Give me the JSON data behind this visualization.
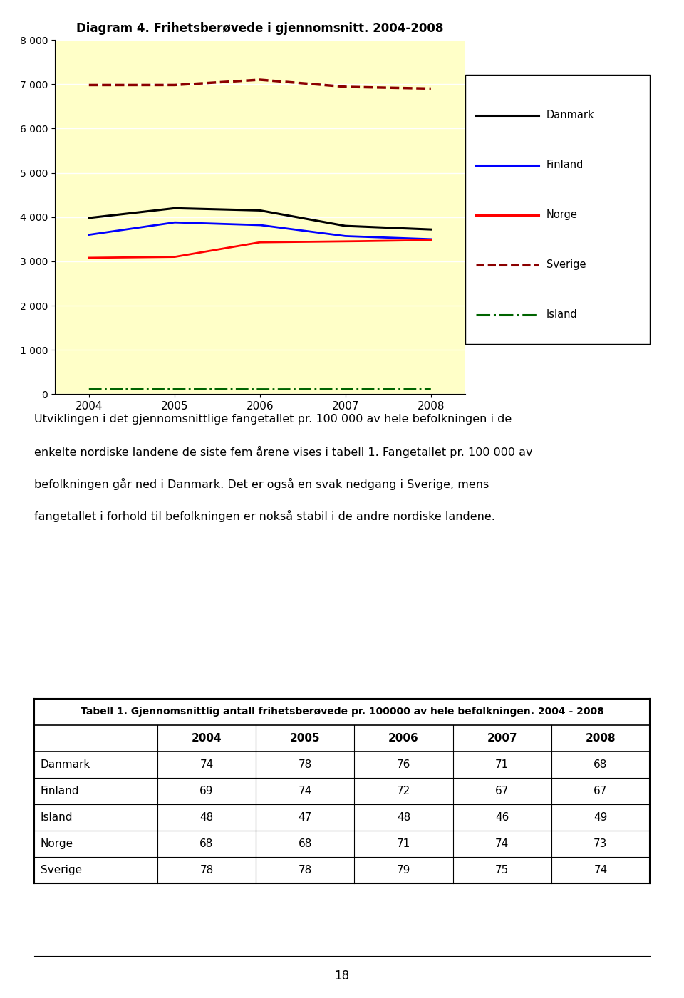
{
  "title": "Diagram 4. Frihetsberøvede i gjennomsnitt. 2004-2008",
  "years": [
    2004,
    2005,
    2006,
    2007,
    2008
  ],
  "series": {
    "Danmark": {
      "values": [
        3980,
        4200,
        4150,
        3800,
        3720
      ],
      "color": "#000000",
      "linestyle": "solid",
      "linewidth": 2.2
    },
    "Finland": {
      "values": [
        3600,
        3880,
        3820,
        3570,
        3500
      ],
      "color": "#0000FF",
      "linestyle": "solid",
      "linewidth": 2.0
    },
    "Norge": {
      "values": [
        3080,
        3100,
        3430,
        3450,
        3480
      ],
      "color": "#FF0000",
      "linestyle": "solid",
      "linewidth": 2.0
    },
    "Sverige": {
      "values": [
        6980,
        6980,
        7100,
        6940,
        6900
      ],
      "color": "#8B0000",
      "linestyle": "dashed",
      "linewidth": 2.5
    },
    "Island": {
      "values": [
        120,
        115,
        110,
        115,
        120
      ],
      "color": "#006400",
      "linestyle": "dashdot",
      "linewidth": 2.0
    }
  },
  "ylim": [
    0,
    8000
  ],
  "yticks": [
    0,
    1000,
    2000,
    3000,
    4000,
    5000,
    6000,
    7000,
    8000
  ],
  "ytick_labels": [
    "0",
    "1 000",
    "2 000",
    "3 000",
    "4 000",
    "5 000",
    "6 000",
    "7 000",
    "8 000"
  ],
  "chart_bg_color": "#FFFFC8",
  "legend_items": [
    {
      "name": "Danmark",
      "color": "#000000",
      "linestyle": "solid"
    },
    {
      "name": "Finland",
      "color": "#0000FF",
      "linestyle": "solid"
    },
    {
      "name": "Norge",
      "color": "#FF0000",
      "linestyle": "solid"
    },
    {
      "name": "Sverige",
      "color": "#8B0000",
      "linestyle": "dashed"
    },
    {
      "name": "Island",
      "color": "#006400",
      "linestyle": "dashdot"
    }
  ],
  "paragraph_text": "Utviklingen i det gjennomsnittlige fangetallet pr. 100 000 av hele befolkningen i de enkelte nordiske landene de siste fem årene vises i tabell 1. Fangetallet pr. 100 000 av befolkningen går ned i Danmark. Det er også en svak nedgang i Sverige, mens fangetallet i forhold til befolkningen er nokså stabil i de andre nordiske landene.",
  "table_title": "Tabell 1. Gjennomsnittlig antall frihetsberøvede pr. 100000 av hele befolkningen. 2004 - 2008",
  "table_col_headers": [
    "",
    "2004",
    "2005",
    "2006",
    "2007",
    "2008"
  ],
  "table_row_headers": [
    "Danmark",
    "Finland",
    "Island",
    "Norge",
    "Sverige"
  ],
  "table_data": [
    [
      74,
      78,
      76,
      71,
      68
    ],
    [
      69,
      74,
      72,
      67,
      67
    ],
    [
      48,
      47,
      48,
      46,
      49
    ],
    [
      68,
      68,
      71,
      74,
      73
    ],
    [
      78,
      78,
      79,
      75,
      74
    ]
  ],
  "page_number": "18"
}
